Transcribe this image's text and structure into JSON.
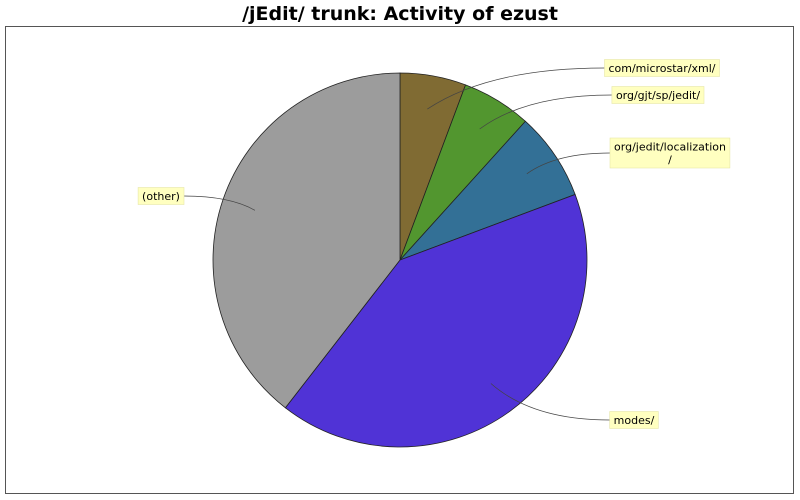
{
  "chart_data": {
    "type": "pie",
    "title": "/jEdit/ trunk: Activity of ezust",
    "slices": [
      {
        "label": "com/microstar/xml/",
        "value": 5.7,
        "color": "#806b33"
      },
      {
        "label": "org/gjt/sp/jedit/",
        "value": 6.0,
        "color": "#52962f"
      },
      {
        "label": "org/jedit/localization/",
        "lines": [
          "org/jedit/localization",
          "/"
        ],
        "value": 7.6,
        "color": "#337096"
      },
      {
        "label": "modes/",
        "value": 41.2,
        "color": "#5033d6"
      },
      {
        "label": "(other)",
        "value": 39.5,
        "color": "#9c9c9c"
      }
    ],
    "start_angle_deg": 90,
    "direction": "clockwise",
    "legend": "none"
  }
}
